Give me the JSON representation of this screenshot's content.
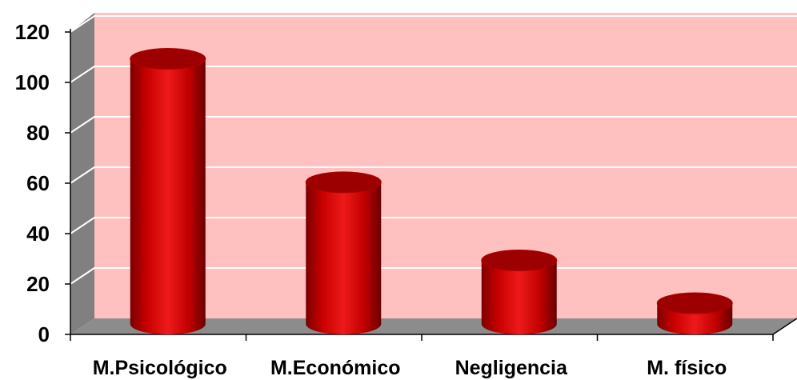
{
  "chart_data": {
    "type": "bar",
    "style": "3d-cylinder",
    "categories": [
      "M.Psicológico",
      "M.Económico",
      "Negligencia",
      "M. físico"
    ],
    "values": [
      110,
      61,
      30,
      13
    ],
    "ylim": [
      0,
      120
    ],
    "yticks": [
      "0",
      "20",
      "40",
      "60",
      "80",
      "100",
      "120"
    ],
    "title": "",
    "xlabel": "",
    "ylabel": "",
    "grid": true,
    "legend": "none",
    "colors": {
      "bar": "#cc0000",
      "bar_top": "#9c0000",
      "plot_background": "#ffc0c0",
      "side_wall": "#808080",
      "floor": "#8c8c8c",
      "gridline": "#ffffff"
    }
  }
}
